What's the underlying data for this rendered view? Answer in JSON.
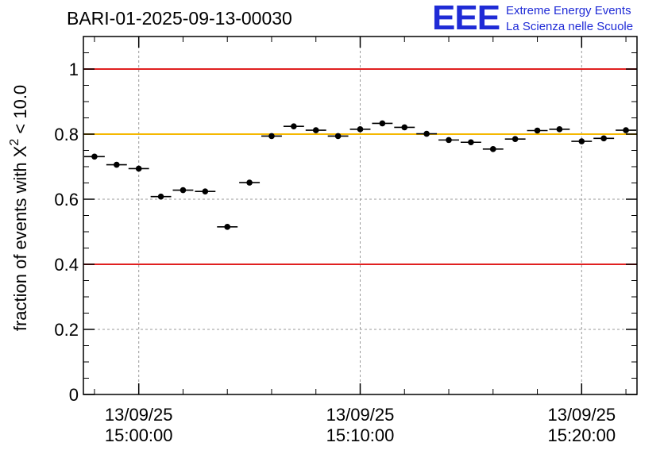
{
  "title": "BARI-01-2025-09-13-00030",
  "logo": {
    "letters": "EEE",
    "line1": "Extreme Energy Events",
    "line2": "La Scienza nelle Scuole",
    "color": "#1f2bd6"
  },
  "chart_data": {
    "type": "scatter",
    "title": "BARI-01-2025-09-13-00030",
    "ylabel_main": "fraction of events with X",
    "ylabel_sup": "2",
    "ylabel_tail": " < 10.0",
    "ylim": [
      0,
      1.1
    ],
    "yticks": [
      "0",
      "0.2",
      "0.4",
      "0.6",
      "0.8",
      "1"
    ],
    "xticks": [
      {
        "date": "13/09/25",
        "time": "15:00:00",
        "minute": 0
      },
      {
        "date": "13/09/25",
        "time": "15:10:00",
        "minute": 10
      },
      {
        "date": "13/09/25",
        "time": "15:20:00",
        "minute": 20
      }
    ],
    "xlim_minutes": [
      -2.5,
      22.5
    ],
    "bin_width_minutes": 1,
    "grid": true,
    "reference_lines": [
      {
        "y": 1.0,
        "color": "#e02020"
      },
      {
        "y": 0.4,
        "color": "#e02020"
      },
      {
        "y": 0.8,
        "color": "#f5b800"
      }
    ],
    "points": [
      {
        "minute": -2.0,
        "y": 0.731
      },
      {
        "minute": -1.0,
        "y": 0.706
      },
      {
        "minute": 0.0,
        "y": 0.694
      },
      {
        "minute": 1.0,
        "y": 0.608
      },
      {
        "minute": 2.0,
        "y": 0.628
      },
      {
        "minute": 3.0,
        "y": 0.624
      },
      {
        "minute": 4.0,
        "y": 0.515
      },
      {
        "minute": 5.0,
        "y": 0.651
      },
      {
        "minute": 6.0,
        "y": 0.794
      },
      {
        "minute": 7.0,
        "y": 0.824
      },
      {
        "minute": 8.0,
        "y": 0.812
      },
      {
        "minute": 9.0,
        "y": 0.794
      },
      {
        "minute": 10.0,
        "y": 0.815
      },
      {
        "minute": 11.0,
        "y": 0.833
      },
      {
        "minute": 12.0,
        "y": 0.821
      },
      {
        "minute": 13.0,
        "y": 0.801
      },
      {
        "minute": 14.0,
        "y": 0.782
      },
      {
        "minute": 15.0,
        "y": 0.775
      },
      {
        "minute": 16.0,
        "y": 0.754
      },
      {
        "minute": 17.0,
        "y": 0.785
      },
      {
        "minute": 18.0,
        "y": 0.811
      },
      {
        "minute": 19.0,
        "y": 0.815
      },
      {
        "minute": 20.0,
        "y": 0.778
      },
      {
        "minute": 21.0,
        "y": 0.787
      },
      {
        "minute": 22.0,
        "y": 0.812
      }
    ]
  }
}
